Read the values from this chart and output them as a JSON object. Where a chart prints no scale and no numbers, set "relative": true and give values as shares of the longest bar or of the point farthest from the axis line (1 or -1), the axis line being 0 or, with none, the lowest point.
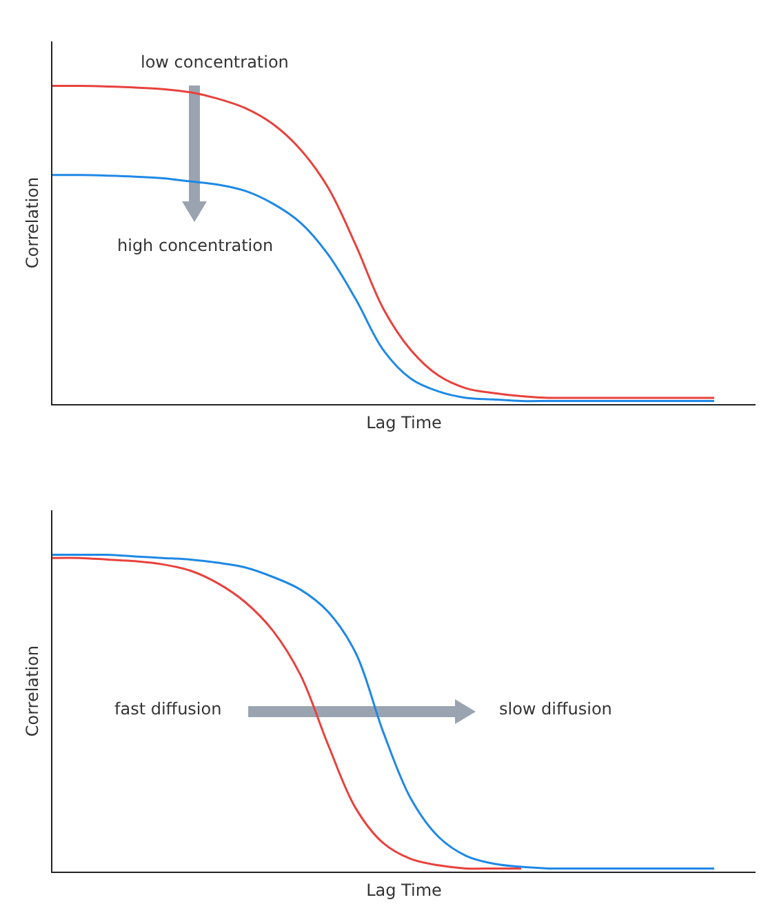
{
  "chart_data": [
    {
      "type": "line",
      "relative": true,
      "xlabel": "Lag Time",
      "ylabel": "Correlation",
      "marker": "none",
      "line_style": "solid",
      "categories": [
        null,
        null,
        null,
        null,
        null,
        null,
        null,
        null,
        null,
        null,
        null,
        null,
        null,
        null,
        null,
        null,
        null,
        null,
        null,
        null,
        null,
        null,
        null,
        null,
        null
      ],
      "series": [
        {
          "color": "#e8413c",
          "values": [
            1.0,
            1.0,
            0.998,
            0.995,
            0.99,
            0.98,
            0.96,
            0.93,
            0.88,
            0.8,
            0.68,
            0.5,
            0.3,
            0.17,
            0.09,
            0.05,
            0.035,
            0.025,
            0.02,
            0.02,
            0.02,
            0.02,
            0.02,
            0.02,
            0.02
          ]
        },
        {
          "color": "#1e88e5",
          "values": [
            0.72,
            0.72,
            0.718,
            0.715,
            0.71,
            0.7,
            0.69,
            0.67,
            0.63,
            0.57,
            0.47,
            0.33,
            0.17,
            0.08,
            0.04,
            0.02,
            0.015,
            0.01,
            0.01,
            0.01,
            0.01,
            0.01,
            0.01,
            0.01,
            0.01
          ]
        }
      ],
      "annotations": [
        "low concentration",
        "high concentration"
      ]
    },
    {
      "type": "line",
      "relative": true,
      "xlabel": "Lag Time",
      "ylabel": "Correlation",
      "marker": "none",
      "line_style": "solid",
      "categories": [
        null,
        null,
        null,
        null,
        null,
        null,
        null,
        null,
        null,
        null,
        null,
        null,
        null,
        null,
        null,
        null,
        null,
        null,
        null,
        null,
        null,
        null,
        null,
        null,
        null
      ],
      "series": [
        {
          "color": "#e8413c",
          "values": [
            0.99,
            0.99,
            0.985,
            0.98,
            0.97,
            0.95,
            0.91,
            0.85,
            0.76,
            0.62,
            0.4,
            0.2,
            0.09,
            0.04,
            0.02,
            0.01,
            0.01,
            0.01,
            null,
            null,
            null,
            null,
            null,
            null,
            null
          ]
        },
        {
          "color": "#1e88e5",
          "values": [
            1.0,
            1.0,
            1.0,
            0.995,
            0.99,
            0.985,
            0.975,
            0.96,
            0.93,
            0.89,
            0.82,
            0.69,
            0.44,
            0.23,
            0.11,
            0.05,
            0.025,
            0.015,
            0.01,
            0.01,
            0.01,
            0.01,
            0.01,
            0.01,
            0.01
          ]
        }
      ],
      "annotations": [
        "fast diffusion",
        "slow diffusion"
      ]
    }
  ]
}
